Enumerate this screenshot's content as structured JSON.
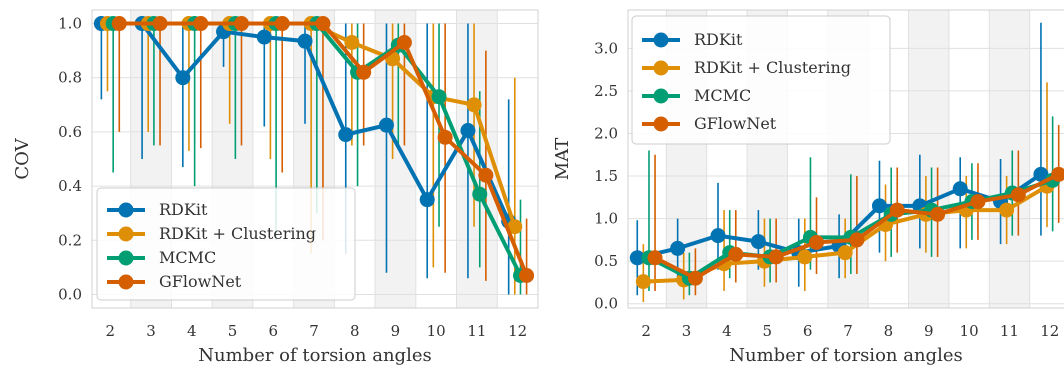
{
  "colors": {
    "RDKit": "#0173b2",
    "RDKit + Clustering": "#de8f05",
    "MCMC": "#029e73",
    "GFlowNet": "#d55e00",
    "band": "#f2f2f2",
    "grid": "#e0e0e0"
  },
  "chart_data": [
    {
      "type": "line",
      "xlabel": "Number of torsion angles",
      "ylabel": "COV",
      "x": [
        2,
        3,
        4,
        5,
        6,
        7,
        8,
        9,
        10,
        11,
        12
      ],
      "xlim": [
        1.55,
        12.5
      ],
      "ylim": [
        -0.05,
        1.05
      ],
      "yticks": [
        "0.0",
        "0.2",
        "0.4",
        "0.6",
        "0.8",
        "1.0"
      ],
      "ytick_values": [
        0,
        0.2,
        0.4,
        0.6,
        0.8,
        1.0
      ],
      "xticks": [
        "2",
        "3",
        "4",
        "5",
        "6",
        "7",
        "8",
        "9",
        "10",
        "11",
        "12"
      ],
      "grid": true,
      "legend_position": "bottom-left",
      "series": [
        {
          "name": "RDKit",
          "values": [
            1.0,
            1.0,
            0.8,
            0.97,
            0.95,
            0.935,
            0.59,
            0.625,
            0.35,
            0.605,
            0.27
          ],
          "err_low": [
            0.72,
            0.5,
            0.47,
            0.84,
            0.62,
            0.63,
            0.15,
            0.08,
            0.06,
            0.06,
            0.0
          ],
          "err_high": [
            1.0,
            1.0,
            1.0,
            1.0,
            1.0,
            1.0,
            1.0,
            1.0,
            1.0,
            1.0,
            0.72
          ]
        },
        {
          "name": "RDKit + Clustering",
          "values": [
            1.0,
            1.0,
            1.0,
            1.0,
            1.0,
            1.0,
            0.93,
            0.87,
            0.73,
            0.7,
            0.25
          ],
          "err_low": [
            0.75,
            0.6,
            0.53,
            0.63,
            0.5,
            0.15,
            0.55,
            0.5,
            0.1,
            0.25,
            0.0
          ],
          "err_high": [
            1.0,
            1.0,
            1.0,
            1.0,
            1.0,
            1.0,
            1.0,
            1.0,
            1.0,
            1.0,
            0.8
          ]
        },
        {
          "name": "MCMC",
          "values": [
            1.0,
            1.0,
            1.0,
            1.0,
            1.0,
            1.0,
            0.82,
            0.92,
            0.73,
            0.37,
            0.07
          ],
          "err_low": [
            0.45,
            0.55,
            0.4,
            0.5,
            0.2,
            0.3,
            0.4,
            0.55,
            0.25,
            0.1,
            0.0
          ],
          "err_high": [
            1.0,
            1.0,
            1.0,
            1.0,
            1.0,
            1.0,
            1.0,
            1.0,
            1.0,
            0.75,
            0.35
          ]
        },
        {
          "name": "GFlowNet",
          "values": [
            1.0,
            1.0,
            1.0,
            1.0,
            1.0,
            1.0,
            0.82,
            0.93,
            0.58,
            0.44,
            0.07
          ],
          "err_low": [
            0.6,
            0.55,
            0.54,
            0.55,
            0.45,
            0.2,
            0.55,
            0.55,
            0.08,
            0.05,
            0.0
          ],
          "err_high": [
            1.0,
            1.0,
            1.0,
            1.0,
            1.0,
            1.0,
            1.0,
            1.0,
            1.0,
            0.9,
            0.28
          ]
        }
      ]
    },
    {
      "type": "line",
      "xlabel": "Number of torsion angles",
      "ylabel": "MAT",
      "x": [
        2,
        3,
        4,
        5,
        6,
        7,
        8,
        9,
        10,
        11,
        12
      ],
      "xlim": [
        1.55,
        12.5
      ],
      "ylim": [
        -0.05,
        3.45
      ],
      "yticks": [
        "0.0",
        "0.5",
        "1.0",
        "1.5",
        "2.0",
        "2.5",
        "3.0"
      ],
      "ytick_values": [
        0,
        0.5,
        1.0,
        1.5,
        2.0,
        2.5,
        3.0
      ],
      "xticks": [
        "2",
        "3",
        "4",
        "5",
        "6",
        "7",
        "8",
        "9",
        "10",
        "11",
        "12"
      ],
      "grid": true,
      "legend_position": "top-left",
      "series": [
        {
          "name": "RDKit",
          "values": [
            0.54,
            0.65,
            0.8,
            0.73,
            0.6,
            0.68,
            1.15,
            1.15,
            1.35,
            1.2,
            1.52
          ],
          "err_low": [
            0.1,
            0.3,
            0.4,
            0.4,
            0.2,
            0.3,
            0.6,
            0.65,
            0.65,
            0.7,
            0.8
          ],
          "err_high": [
            0.98,
            1.0,
            1.42,
            1.1,
            1.0,
            1.05,
            1.68,
            1.75,
            1.72,
            1.7,
            3.3
          ]
        },
        {
          "name": "RDKit + Clustering",
          "values": [
            0.26,
            0.28,
            0.47,
            0.5,
            0.55,
            0.6,
            0.93,
            1.05,
            1.1,
            1.1,
            1.38
          ],
          "err_low": [
            0.02,
            0.05,
            0.15,
            0.2,
            0.15,
            0.3,
            0.5,
            0.6,
            0.65,
            0.7,
            0.9
          ],
          "err_high": [
            0.7,
            0.6,
            1.1,
            1.0,
            1.0,
            1.0,
            1.4,
            1.5,
            1.5,
            1.5,
            2.6
          ]
        },
        {
          "name": "MCMC",
          "values": [
            0.54,
            0.3,
            0.6,
            0.55,
            0.78,
            0.78,
            1.05,
            1.1,
            1.2,
            1.3,
            1.45
          ],
          "err_low": [
            0.15,
            0.1,
            0.3,
            0.25,
            0.4,
            0.35,
            0.55,
            0.55,
            0.75,
            0.8,
            0.85
          ],
          "err_high": [
            1.8,
            0.6,
            1.1,
            1.0,
            1.72,
            1.52,
            1.6,
            1.6,
            1.65,
            1.8,
            2.2
          ]
        },
        {
          "name": "GFlowNet",
          "values": [
            0.54,
            0.3,
            0.58,
            0.55,
            0.72,
            0.75,
            1.1,
            1.05,
            1.2,
            1.28,
            1.52
          ],
          "err_low": [
            0.15,
            0.1,
            0.25,
            0.25,
            0.35,
            0.35,
            0.6,
            0.55,
            0.75,
            0.8,
            0.95
          ],
          "err_high": [
            1.75,
            0.65,
            1.1,
            1.0,
            1.25,
            1.5,
            1.6,
            1.6,
            1.65,
            1.8,
            2.1
          ]
        }
      ]
    }
  ]
}
